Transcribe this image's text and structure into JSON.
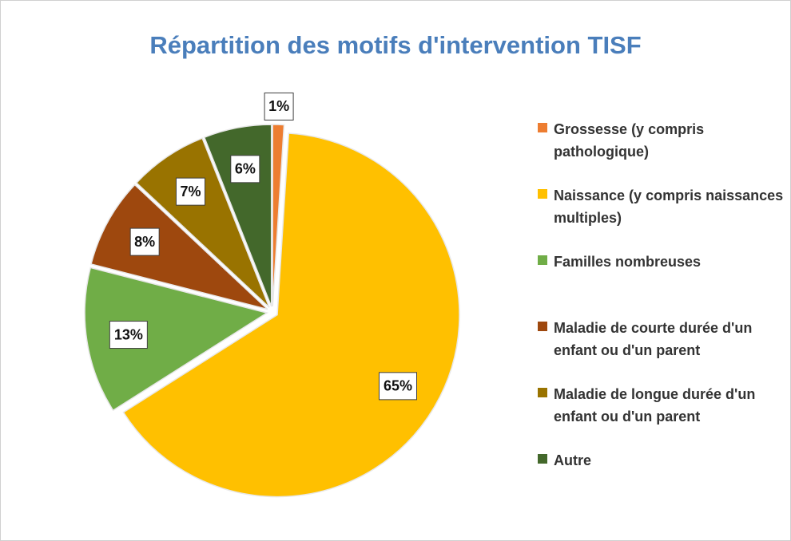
{
  "chart_data": {
    "type": "pie",
    "title": "Répartition des motifs d'intervention TISF",
    "categories": [
      "Grossesse (y compris pathologique)",
      "Naissance (y compris naissances multiples)",
      "Familles nombreuses",
      "Maladie de courte durée d'un enfant ou d'un parent",
      "Maladie de longue durée d'un enfant ou d'un parent",
      "Autre"
    ],
    "values": [
      1,
      65,
      13,
      8,
      7,
      6
    ],
    "value_labels": [
      "1%",
      "65%",
      "13%",
      "8%",
      "7%",
      "6%"
    ],
    "colors": [
      "#ed7d31",
      "#ffc000",
      "#70ad47",
      "#9e480e",
      "#997300",
      "#43682b"
    ],
    "legend": "right"
  }
}
